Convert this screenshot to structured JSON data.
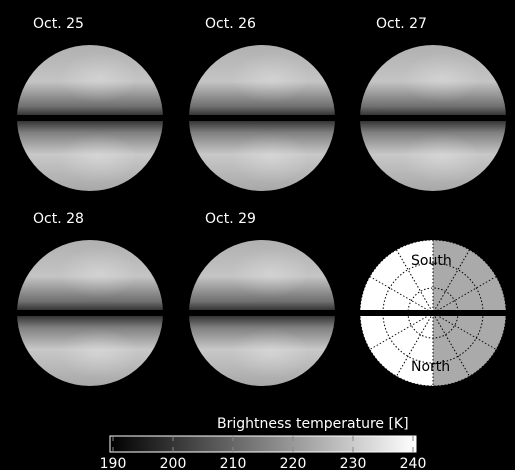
{
  "panels": [
    {
      "label": "Oct. 25"
    },
    {
      "label": "Oct. 26"
    },
    {
      "label": "Oct. 27"
    },
    {
      "label": "Oct. 28"
    },
    {
      "label": "Oct. 29"
    }
  ],
  "diagram": {
    "south": "South",
    "north": "North"
  },
  "colorbar": {
    "title": "Brightness temperature [K]",
    "lim": [
      190,
      240
    ],
    "ticks": [
      190,
      200,
      210,
      220,
      230,
      240
    ]
  }
}
